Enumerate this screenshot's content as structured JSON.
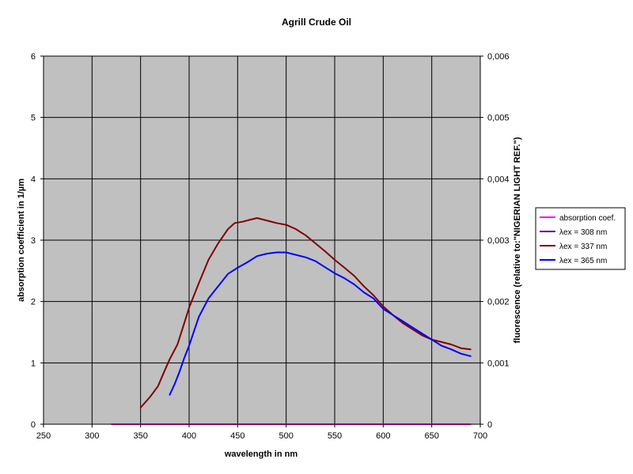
{
  "chart_data": {
    "type": "line",
    "title": "Agrill Crude Oil",
    "xlabel": "wavelength in nm",
    "ylabel": "absorption coefficient in 1/µm",
    "y2label": "fluorescence (relative to:\"NIGERIAN LIGHT REF.\")",
    "xlim": [
      250,
      700
    ],
    "ylim": [
      0,
      6
    ],
    "y2lim": [
      0,
      0.006
    ],
    "x_ticks": [
      "250",
      "300",
      "350",
      "400",
      "450",
      "500",
      "550",
      "600",
      "650",
      "700"
    ],
    "y_ticks": [
      "0",
      "1",
      "2",
      "3",
      "4",
      "5",
      "6"
    ],
    "y2_ticks": [
      "0",
      "0,001",
      "0,002",
      "0,003",
      "0,004",
      "0,005",
      "0,006"
    ],
    "grid": true,
    "legend_position": "right",
    "plot_background": "#c0c0c0",
    "series": [
      {
        "name": "absorption coef.",
        "color": "#ff00ff",
        "axis": "left",
        "points": [
          [
            320,
            0.0
          ],
          [
            690,
            0.0
          ]
        ]
      },
      {
        "name": "λex = 308 nm",
        "color": "#660099",
        "axis": "right",
        "points": []
      },
      {
        "name": "λex = 337 nm",
        "color": "#800000",
        "axis": "right",
        "points": [
          [
            350,
            0.00027
          ],
          [
            360,
            0.00045
          ],
          [
            368,
            0.00062
          ],
          [
            375,
            0.00088
          ],
          [
            380,
            0.00106
          ],
          [
            388,
            0.0013
          ],
          [
            395,
            0.00165
          ],
          [
            400,
            0.0019
          ],
          [
            410,
            0.0023
          ],
          [
            420,
            0.00268
          ],
          [
            430,
            0.00295
          ],
          [
            440,
            0.00318
          ],
          [
            447,
            0.00328
          ],
          [
            455,
            0.0033
          ],
          [
            462,
            0.00333
          ],
          [
            470,
            0.00336
          ],
          [
            480,
            0.00332
          ],
          [
            490,
            0.00328
          ],
          [
            500,
            0.00325
          ],
          [
            510,
            0.00318
          ],
          [
            520,
            0.00308
          ],
          [
            530,
            0.00295
          ],
          [
            540,
            0.00282
          ],
          [
            550,
            0.00268
          ],
          [
            560,
            0.00255
          ],
          [
            570,
            0.00242
          ],
          [
            580,
            0.00225
          ],
          [
            590,
            0.0021
          ],
          [
            600,
            0.00192
          ],
          [
            610,
            0.00178
          ],
          [
            620,
            0.00165
          ],
          [
            630,
            0.00155
          ],
          [
            640,
            0.00145
          ],
          [
            650,
            0.00138
          ],
          [
            660,
            0.00134
          ],
          [
            670,
            0.0013
          ],
          [
            680,
            0.00124
          ],
          [
            690,
            0.00122
          ]
        ]
      },
      {
        "name": "λex = 365 nm",
        "color": "#0000ff",
        "axis": "right",
        "points": [
          [
            380,
            0.00048
          ],
          [
            385,
            0.00065
          ],
          [
            390,
            0.00085
          ],
          [
            395,
            0.00108
          ],
          [
            400,
            0.00128
          ],
          [
            410,
            0.00175
          ],
          [
            420,
            0.00205
          ],
          [
            430,
            0.00225
          ],
          [
            440,
            0.00245
          ],
          [
            450,
            0.00255
          ],
          [
            460,
            0.00264
          ],
          [
            470,
            0.00274
          ],
          [
            480,
            0.00278
          ],
          [
            490,
            0.0028
          ],
          [
            500,
            0.0028
          ],
          [
            510,
            0.00276
          ],
          [
            520,
            0.00272
          ],
          [
            530,
            0.00266
          ],
          [
            540,
            0.00256
          ],
          [
            550,
            0.00246
          ],
          [
            560,
            0.00238
          ],
          [
            570,
            0.00228
          ],
          [
            580,
            0.00215
          ],
          [
            590,
            0.00205
          ],
          [
            600,
            0.00188
          ],
          [
            610,
            0.00178
          ],
          [
            620,
            0.00168
          ],
          [
            630,
            0.00158
          ],
          [
            640,
            0.00148
          ],
          [
            650,
            0.00138
          ],
          [
            660,
            0.00128
          ],
          [
            670,
            0.00122
          ],
          [
            680,
            0.00115
          ],
          [
            690,
            0.00111
          ]
        ]
      }
    ]
  }
}
